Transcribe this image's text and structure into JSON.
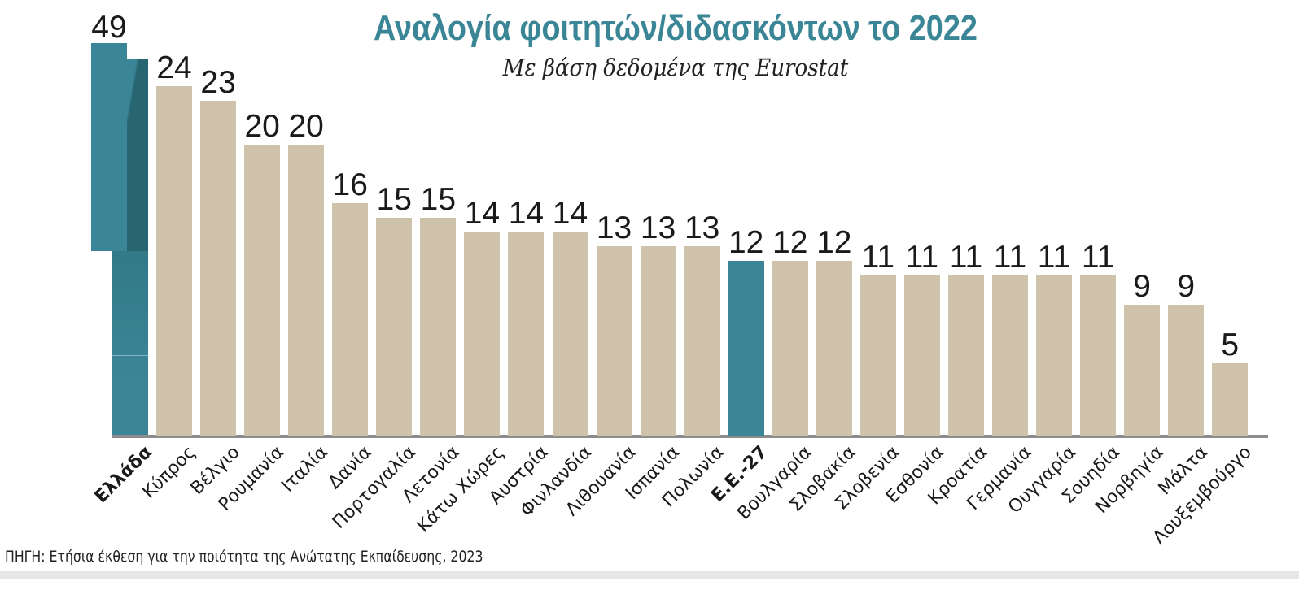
{
  "header": {
    "title": "Αναλογία φοιτητών/διδασκόντων το 2022",
    "subtitle": "Με βάση δεδομένα της Eurostat"
  },
  "footer": {
    "source": "ΠΗΓΗ: Ετήσια έκθεση για την ποιότητα της Ανώτατης Εκπαίδευσης, 2023"
  },
  "colors": {
    "highlight": "#3a8596",
    "highlight_dark": "#276571",
    "bar": "#cfc2ab",
    "axis": "#8c8c8c",
    "title": "#3a8596"
  },
  "chart_data": {
    "type": "bar",
    "title": "Αναλογία φοιτητών/διδασκόντων το 2022",
    "subtitle": "Με βάση δεδομένα της Eurostat",
    "xlabel": "",
    "ylabel": "",
    "grid": false,
    "legend": null,
    "axis_break": {
      "category": "Ελλάδα",
      "note": "Greece bar drawn as broken/folded bar because value exceeds scale"
    },
    "categories": [
      "Ελλάδα",
      "Κύπρος",
      "Βέλγιο",
      "Ρουμανία",
      "Ιταλία",
      "Δανία",
      "Πορτογαλία",
      "Λετονία",
      "Κάτω Χώρες",
      "Αυστρία",
      "Φινλανδία",
      "Λιθουανία",
      "Ισπανία",
      "Πολωνία",
      "Ε.Ε.-27",
      "Βουλγαρία",
      "Σλοβακία",
      "Σλοβενία",
      "Εσθονία",
      "Κροατία",
      "Γερμανία",
      "Ουγγαρία",
      "Σουηδία",
      "Νορβηγία",
      "Μάλτα",
      "Λουξεμβούργο"
    ],
    "values": [
      49,
      24,
      23,
      20,
      20,
      16,
      15,
      15,
      14,
      14,
      14,
      13,
      13,
      13,
      12,
      12,
      12,
      11,
      11,
      11,
      11,
      11,
      11,
      9,
      9,
      5
    ],
    "highlighted": [
      "Ελλάδα",
      "Ε.Ε.-27"
    ],
    "bold_labels": [
      "Ελλάδα",
      "Ε.Ε.-27"
    ]
  }
}
